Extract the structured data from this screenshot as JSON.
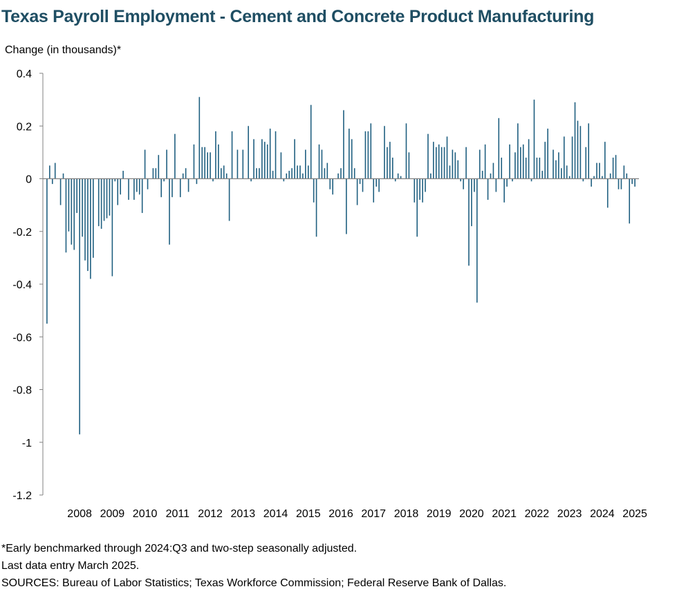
{
  "chart_data": {
    "type": "bar",
    "title": "Texas Payroll Employment - Cement and Concrete Product Manufacturing",
    "ylabel": "Change (in thousands)*",
    "xlabel": "",
    "ylim": [
      -1.2,
      0.4
    ],
    "yticks": [
      0.4,
      0.2,
      0,
      -0.2,
      -0.4,
      -0.6,
      -0.8,
      -1,
      -1.2
    ],
    "ytick_labels": [
      "0.4",
      "0.2",
      "0",
      "-0.2",
      "-0.4",
      "-0.6",
      "-0.8",
      "-1",
      "-1.2"
    ],
    "year_labels": [
      "2008",
      "2009",
      "2010",
      "2011",
      "2012",
      "2013",
      "2014",
      "2015",
      "2016",
      "2017",
      "2018",
      "2019",
      "2020",
      "2021",
      "2022",
      "2023",
      "2024",
      "2025"
    ],
    "start": "2007-02",
    "frequency": "monthly",
    "bar_color": "#1f5f80",
    "values": [
      -0.55,
      0.05,
      -0.02,
      0.06,
      0.0,
      -0.1,
      0.02,
      -0.28,
      -0.2,
      -0.25,
      -0.27,
      -0.13,
      -0.97,
      -0.22,
      -0.31,
      -0.35,
      -0.38,
      -0.3,
      0.0,
      -0.18,
      -0.19,
      -0.16,
      -0.15,
      -0.14,
      -0.37,
      -0.01,
      -0.1,
      -0.06,
      0.03,
      0.0,
      -0.08,
      0.0,
      -0.08,
      -0.05,
      -0.06,
      -0.13,
      0.11,
      -0.04,
      0.0,
      0.04,
      0.04,
      0.09,
      -0.07,
      -0.01,
      0.11,
      -0.25,
      -0.07,
      0.17,
      0.0,
      -0.07,
      0.02,
      0.04,
      -0.05,
      0.0,
      0.13,
      -0.02,
      0.31,
      0.12,
      0.12,
      0.1,
      0.1,
      -0.01,
      0.18,
      0.13,
      0.04,
      0.05,
      0.02,
      -0.16,
      0.18,
      0.0,
      0.11,
      0.0,
      0.11,
      0.0,
      0.2,
      -0.01,
      0.15,
      0.04,
      0.04,
      0.15,
      0.14,
      0.13,
      0.19,
      0.03,
      0.18,
      0.0,
      0.1,
      -0.01,
      0.02,
      0.03,
      0.04,
      0.15,
      0.05,
      0.05,
      0.02,
      0.11,
      0.05,
      0.28,
      -0.09,
      -0.22,
      0.13,
      0.11,
      0.04,
      0.06,
      -0.04,
      -0.06,
      0.0,
      0.02,
      0.04,
      0.26,
      -0.21,
      0.19,
      0.15,
      0.04,
      -0.1,
      -0.02,
      -0.05,
      0.18,
      0.18,
      0.21,
      -0.09,
      -0.03,
      -0.05,
      0.0,
      0.2,
      0.12,
      0.14,
      0.08,
      -0.01,
      0.02,
      0.01,
      0.0,
      0.21,
      0.1,
      0.0,
      -0.09,
      -0.22,
      -0.08,
      -0.09,
      -0.05,
      0.17,
      0.02,
      0.14,
      0.12,
      0.13,
      0.12,
      0.12,
      0.16,
      0.05,
      0.11,
      0.1,
      0.07,
      -0.01,
      -0.04,
      0.12,
      -0.33,
      -0.18,
      -0.05,
      -0.47,
      0.11,
      0.03,
      0.13,
      -0.08,
      0.02,
      0.06,
      -0.05,
      0.23,
      0.08,
      -0.09,
      -0.03,
      0.13,
      -0.01,
      0.1,
      0.21,
      0.12,
      0.13,
      0.08,
      0.15,
      -0.01,
      0.3,
      0.08,
      0.08,
      0.03,
      0.14,
      0.19,
      0.0,
      0.11,
      0.07,
      0.1,
      0.04,
      0.16,
      0.05,
      0.01,
      0.16,
      0.29,
      0.22,
      0.2,
      -0.01,
      0.12,
      0.21,
      -0.03,
      0.01,
      0.06,
      0.06,
      0.01,
      0.14,
      -0.11,
      0.02,
      0.08,
      0.09,
      -0.04,
      -0.04,
      0.05,
      0.02,
      -0.17,
      -0.02,
      -0.03
    ],
    "bar_values_from": "2007-02 through 2025-02"
  },
  "notes": {
    "line1": "*Early benchmarked through 2024:Q3  and two-step seasonally adjusted.",
    "line2": "Last data entry March 2025.",
    "line3": "SOURCES:  Bureau of Labor Statistics;  Texas Workforce Commission;  Federal Reserve Bank of Dallas."
  }
}
